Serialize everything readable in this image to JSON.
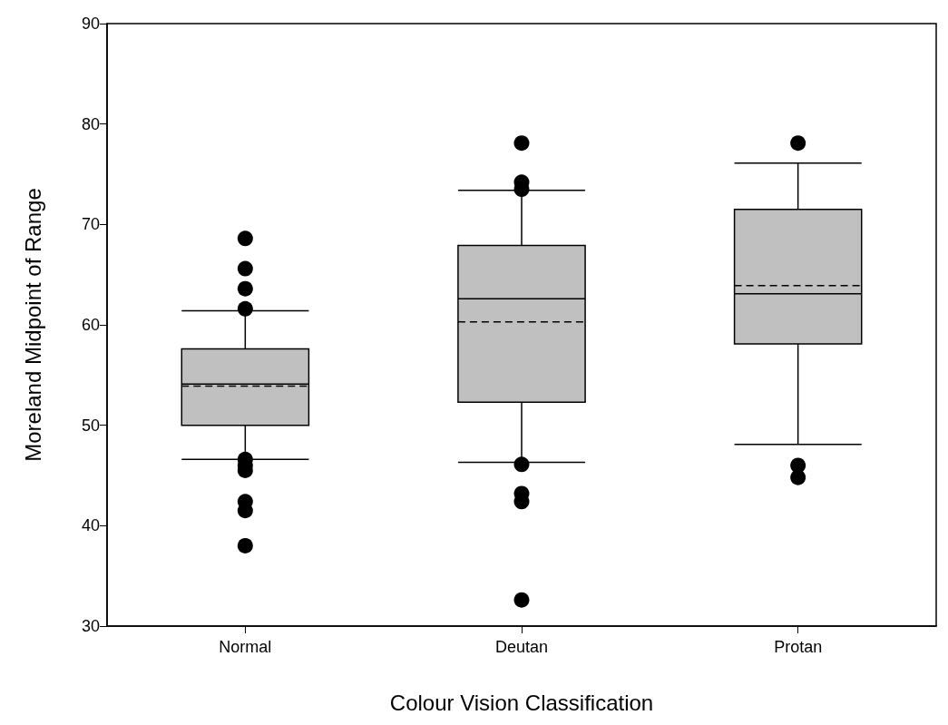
{
  "chart_data": {
    "type": "box",
    "xlabel": "Colour Vision Classification",
    "ylabel": "Moreland Midpoint of Range",
    "categories": [
      "Normal",
      "Deutan",
      "Protan"
    ],
    "series": [
      {
        "color": "#c0c0c0",
        "boxes": [
          {
            "low": 46.6,
            "q1": 50,
            "median": 54.1,
            "q3": 57.6,
            "high": 61.4,
            "mean": 53.9,
            "outliers": [
              68.6,
              65.6,
              63.6,
              61.6,
              46.6,
              46,
              45.5,
              42.4,
              41.5,
              38
            ]
          },
          {
            "low": 46.3,
            "q1": 52.3,
            "median": 62.6,
            "q3": 67.9,
            "high": 73.4,
            "mean": 60.3,
            "outliers": [
              78.1,
              74.2,
              73.5,
              46.1,
              43.2,
              42.4,
              32.6
            ]
          },
          {
            "low": 48.1,
            "q1": 58.1,
            "median": 63.1,
            "q3": 71.5,
            "high": 76.1,
            "mean": 63.9,
            "outliers": [
              78.1,
              46,
              44.8
            ]
          }
        ]
      }
    ],
    "ylim": [
      30,
      90
    ],
    "yticks": [
      30,
      40,
      50,
      60,
      70,
      80,
      90
    ]
  }
}
